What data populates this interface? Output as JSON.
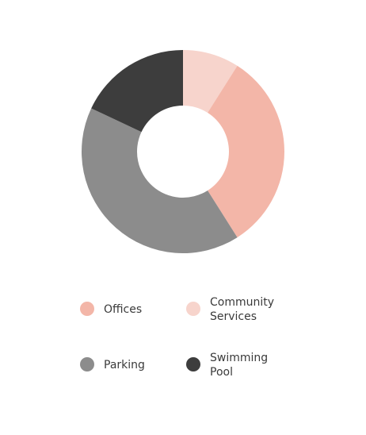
{
  "chart_data": {
    "type": "pie",
    "variant": "donut",
    "title": "",
    "slices": [
      {
        "name": "Community Services",
        "label_lines": [
          "Community",
          "Services"
        ],
        "value": 9,
        "color": "#F7D4CC"
      },
      {
        "name": "Offices",
        "label_lines": [
          "Offices"
        ],
        "value": 32,
        "color": "#F3B6A8"
      },
      {
        "name": "Parking",
        "label_lines": [
          "Parking"
        ],
        "value": 41,
        "color": "#8C8C8C"
      },
      {
        "name": "Swimming Pool",
        "label_lines": [
          "Swimming",
          "Pool"
        ],
        "value": 18,
        "color": "#3D3D3D"
      }
    ],
    "legend": {
      "placement": "bottom",
      "order": [
        "Offices",
        "Community Services",
        "Parking",
        "Swimming Pool"
      ]
    }
  }
}
